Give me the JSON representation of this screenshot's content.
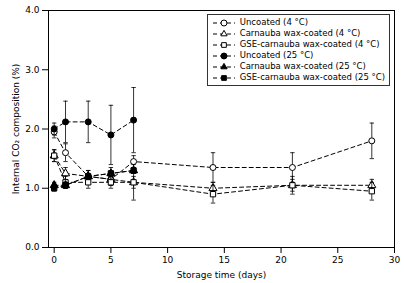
{
  "chart_data": {
    "type": "line",
    "xlabel": "Storage time (days)",
    "ylabel": "Internal CO₂ composition (%)",
    "xlim": [
      -0.5,
      30
    ],
    "ylim": [
      0.0,
      4.0
    ],
    "xticks": [
      0,
      5,
      10,
      15,
      20,
      25,
      30
    ],
    "yticks": [
      0,
      1,
      2,
      3,
      4
    ],
    "grid": false,
    "legend": "upper right",
    "series": [
      {
        "name": "Uncoated (4 °C)",
        "color": "black",
        "marker": "circle-open",
        "line_style": "dashed",
        "x": [
          0,
          1,
          3,
          5,
          7,
          14,
          21,
          28
        ],
        "values": [
          1.95,
          1.6,
          1.2,
          1.15,
          1.45,
          1.35,
          1.35,
          1.8
        ],
        "yerr": [
          0.1,
          0.15,
          0.1,
          0.1,
          0.1,
          0.25,
          0.25,
          0.3
        ]
      },
      {
        "name": "Carnauba wax-coated (4 °C)",
        "color": "black",
        "marker": "triangle-open",
        "line_style": "dashed",
        "x": [
          0,
          1,
          3,
          5,
          7,
          14,
          21,
          28
        ],
        "values": [
          1.55,
          1.25,
          1.2,
          1.15,
          1.1,
          1.0,
          1.05,
          1.05
        ],
        "yerr": [
          0.1,
          0.1,
          0.1,
          0.1,
          0.1,
          0.1,
          0.15,
          0.1
        ]
      },
      {
        "name": "GSE-carnauba wax-coated (4 °C)",
        "color": "black",
        "marker": "square-open",
        "line_style": "dashed",
        "x": [
          0,
          1,
          3,
          5,
          7,
          14,
          21,
          28
        ],
        "values": [
          1.55,
          1.1,
          1.1,
          1.1,
          1.1,
          0.9,
          1.05,
          0.95
        ],
        "yerr": [
          0.1,
          0.1,
          0.1,
          0.1,
          0.3,
          0.15,
          0.1,
          0.15
        ]
      },
      {
        "name": "Uncoated (25 °C)",
        "color": "black",
        "marker": "circle",
        "line_style": "dashed",
        "x": [
          0,
          1,
          3,
          5,
          7
        ],
        "values": [
          2.0,
          2.12,
          2.12,
          1.9,
          2.15
        ],
        "yerr": [
          0.1,
          0.35,
          0.35,
          0.5,
          0.55
        ]
      },
      {
        "name": "Carnauba wax-coated (25 °C)",
        "color": "black",
        "marker": "triangle",
        "line_style": "dashed",
        "x": [
          0,
          1,
          3,
          5,
          7
        ],
        "values": [
          1.05,
          1.05,
          1.2,
          1.25,
          1.3
        ],
        "yerr": [
          0.05,
          0.05,
          0.05,
          0.1,
          0.05
        ]
      },
      {
        "name": "GSE-carnauba wax-coated (25 °C)",
        "color": "black",
        "marker": "square",
        "line_style": "dashed",
        "x": [
          0,
          1,
          3,
          5,
          7
        ],
        "values": [
          1.0,
          1.05,
          1.2,
          1.25,
          1.3
        ],
        "yerr": [
          0.05,
          0.05,
          0.05,
          0.05,
          0.05
        ]
      }
    ]
  }
}
